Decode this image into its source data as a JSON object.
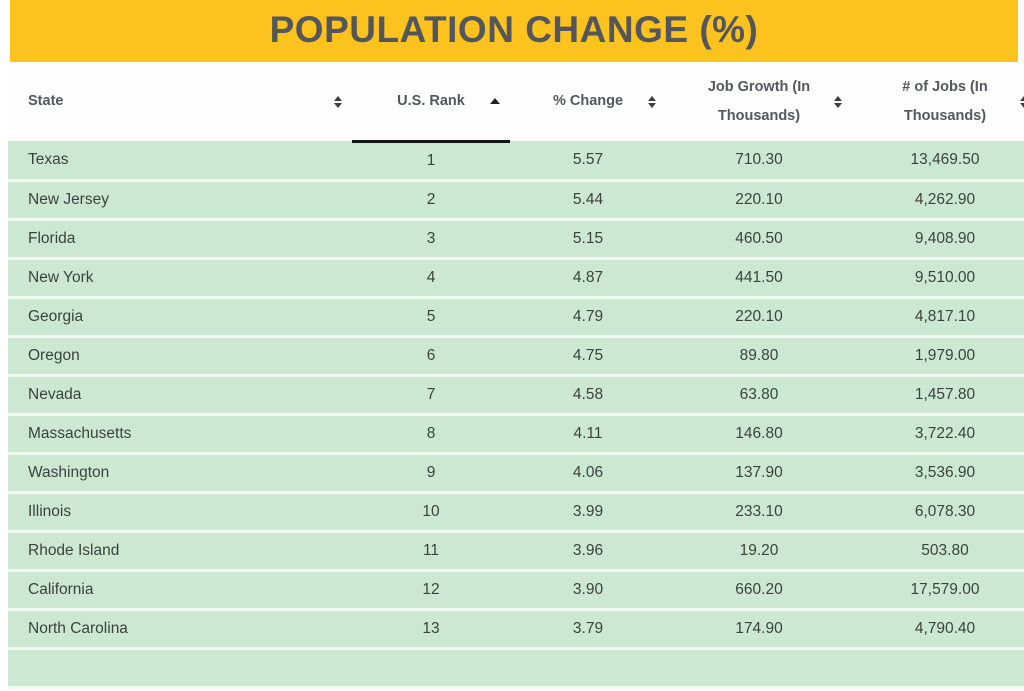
{
  "banner": {
    "title": "POPULATION CHANGE (%)",
    "background_color": "#fcc21d",
    "title_color": "#55565b"
  },
  "table": {
    "columns": [
      {
        "label": "State",
        "sort": "both"
      },
      {
        "label": "U.S. Rank",
        "sort": "asc"
      },
      {
        "label": "% Change",
        "sort": "both"
      },
      {
        "label": "Job Growth (In Thousands)",
        "sort": "both"
      },
      {
        "label": "# of Jobs (In Thousands)",
        "sort": "both"
      }
    ],
    "rows": [
      {
        "state": "Texas",
        "rank": "1",
        "change": "5.57",
        "growth": "710.30",
        "jobs": "13,469.50"
      },
      {
        "state": "New Jersey",
        "rank": "2",
        "change": "5.44",
        "growth": "220.10",
        "jobs": "4,262.90"
      },
      {
        "state": "Florida",
        "rank": "3",
        "change": "5.15",
        "growth": "460.50",
        "jobs": "9,408.90"
      },
      {
        "state": "New York",
        "rank": "4",
        "change": "4.87",
        "growth": "441.50",
        "jobs": "9,510.00"
      },
      {
        "state": "Georgia",
        "rank": "5",
        "change": "4.79",
        "growth": "220.10",
        "jobs": "4,817.10"
      },
      {
        "state": "Oregon",
        "rank": "6",
        "change": "4.75",
        "growth": "89.80",
        "jobs": "1,979.00"
      },
      {
        "state": "Nevada",
        "rank": "7",
        "change": "4.58",
        "growth": "63.80",
        "jobs": "1,457.80"
      },
      {
        "state": "Massachusetts",
        "rank": "8",
        "change": "4.11",
        "growth": "146.80",
        "jobs": "3,722.40"
      },
      {
        "state": "Washington",
        "rank": "9",
        "change": "4.06",
        "growth": "137.90",
        "jobs": "3,536.90"
      },
      {
        "state": "Illinois",
        "rank": "10",
        "change": "3.99",
        "growth": "233.10",
        "jobs": "6,078.30"
      },
      {
        "state": "Rhode Island",
        "rank": "11",
        "change": "3.96",
        "growth": "19.20",
        "jobs": "503.80"
      },
      {
        "state": "California",
        "rank": "12",
        "change": "3.90",
        "growth": "660.20",
        "jobs": "17,579.00"
      },
      {
        "state": "North Carolina",
        "rank": "13",
        "change": "3.79",
        "growth": "174.90",
        "jobs": "4,790.40"
      }
    ],
    "colors": {
      "row_green": "#cce8d3",
      "row_separator": "#f0f8f2",
      "sorted_underline": "#161616",
      "header_text": "#55575c",
      "row_text": "#3b423d"
    }
  }
}
